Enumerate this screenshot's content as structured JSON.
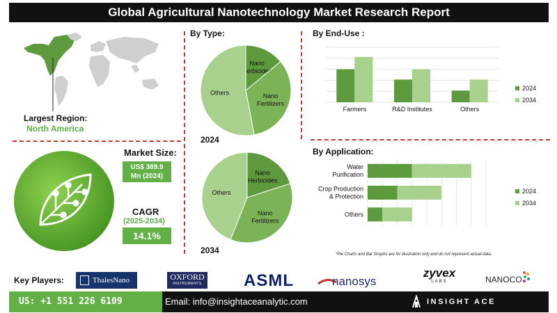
{
  "title": "Global Agricultural Nanotechnology Market Research Report",
  "region": {
    "label": "Largest Region:",
    "value": "North America"
  },
  "market_size": {
    "label": "Market Size:",
    "value_line1": "US$ 389.9",
    "value_line2": "Mn (2024)"
  },
  "cagr": {
    "label": "CAGR",
    "years": "(2025-2034)",
    "value": "14.1%"
  },
  "colors": {
    "dark_green": "#5c9a3d",
    "light_green": "#a9d18e",
    "mid_green": "#7cb356",
    "accent": "#62b046",
    "divider": "#c0392b"
  },
  "footnote": "*Pie Charts and Bar Graphs are for illustration only and do not represent actual data.",
  "key_players": {
    "label": "Key Players:",
    "logos": [
      "ThalesNano",
      "OXFORD",
      "INSTRUMENTS",
      "ASML",
      "nanosys",
      "zyvex",
      "LABS",
      "NANOCO"
    ]
  },
  "footer": {
    "phone": "US: +1 551 226 6109",
    "email": "Email: info@insightaceanalytic.com",
    "brand": "INSIGHT ACE ANALYTIC"
  },
  "chart_data": [
    {
      "type": "pie",
      "title": "By Type:",
      "year": "2024",
      "slices": [
        {
          "label": "Nano Herbicides",
          "value": 14
        },
        {
          "label": "Nano Fertilizers",
          "value": 33
        },
        {
          "label": "Others",
          "value": 53
        }
      ]
    },
    {
      "type": "pie",
      "year": "2034",
      "slices": [
        {
          "label": "Nano Herbicides",
          "value": 20
        },
        {
          "label": "Nano Fertilizers",
          "value": 36
        },
        {
          "label": "Others",
          "value": 44
        }
      ]
    },
    {
      "type": "bar",
      "title": "By End-Use :",
      "categories": [
        "Farmers",
        "R&D Institutes",
        "Others"
      ],
      "series": [
        {
          "name": "2024",
          "values": [
            48,
            33,
            17
          ]
        },
        {
          "name": "2034",
          "values": [
            66,
            48,
            33
          ]
        }
      ],
      "ylim": [
        0,
        80
      ]
    },
    {
      "type": "bar",
      "orientation": "horizontal",
      "stacked": true,
      "title": "By Application:",
      "categories": [
        "Water Purification",
        "Crop Production & Protection",
        "Others"
      ],
      "series": [
        {
          "name": "2024",
          "values": [
            30,
            20,
            10
          ]
        },
        {
          "name": "2034",
          "values": [
            40,
            30,
            20
          ]
        }
      ],
      "xlim": [
        0,
        80
      ]
    }
  ]
}
